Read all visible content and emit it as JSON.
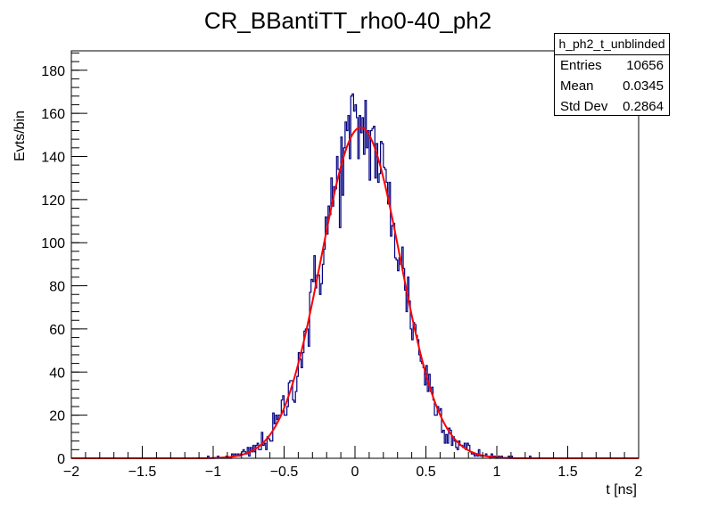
{
  "chart_data": {
    "type": "histogram",
    "title": "CR_BBantiTT_rho0-40_ph2",
    "xlabel": "t [ns]",
    "ylabel": "Evts/bin",
    "xlim": [
      -2,
      2
    ],
    "ylim": [
      0,
      189
    ],
    "x_ticks": [
      -2,
      -1.5,
      -1,
      -0.5,
      0,
      0.5,
      1,
      1.5,
      2
    ],
    "x_tick_labels": [
      "−2",
      "−1.5",
      "−1",
      "−0.5",
      "0",
      "0.5",
      "1",
      "1.5",
      "2"
    ],
    "y_ticks": [
      0,
      20,
      40,
      60,
      80,
      100,
      120,
      140,
      160,
      180
    ],
    "y_tick_labels": [
      "0",
      "20",
      "40",
      "60",
      "80",
      "100",
      "120",
      "140",
      "160",
      "180"
    ],
    "bin_width": 0.01,
    "histogram_color": "#000080",
    "fit_color": "#ff0000",
    "fit": {
      "function": "gaus",
      "constant": 153.5,
      "mean": 0.04,
      "sigma": 0.278
    },
    "stats": {
      "name": "h_ph2_t_unblinded",
      "entries_label": "Entries",
      "entries_value": "10656",
      "mean_label": "Mean",
      "mean_value": "0.0345",
      "stddev_label": "Std Dev",
      "stddev_value": "0.2864"
    }
  }
}
